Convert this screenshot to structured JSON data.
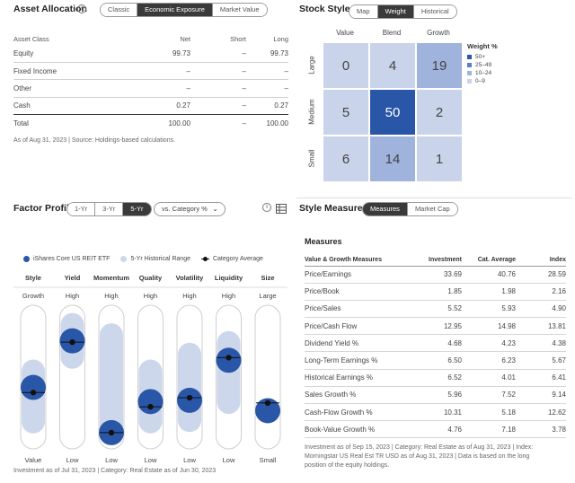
{
  "asset_allocation": {
    "title": "Asset Allocation",
    "tabs": [
      "Classic",
      "Economic Exposure",
      "Market Value"
    ],
    "active_tab": 1,
    "columns": [
      "Asset Class",
      "Net",
      "Short",
      "Long"
    ],
    "rows": [
      {
        "name": "Equity",
        "net": "99.73",
        "short": "–",
        "long": "99.73"
      },
      {
        "name": "Fixed Income",
        "net": "–",
        "short": "–",
        "long": "–"
      },
      {
        "name": "Other",
        "net": "–",
        "short": "–",
        "long": "–"
      },
      {
        "name": "Cash",
        "net": "0.27",
        "short": "–",
        "long": "0.27"
      },
      {
        "name": "Total",
        "net": "100.00",
        "short": "–",
        "long": "100.00"
      }
    ],
    "footnote": "As of Aug 31, 2023 | Source: Holdings-based calculations."
  },
  "stock_style": {
    "title": "Stock Style",
    "tabs": [
      "Map",
      "Weight",
      "Historical"
    ],
    "active_tab": 1,
    "col_labels": [
      "Value",
      "Blend",
      "Growth"
    ],
    "row_labels": [
      "Large",
      "Medium",
      "Small"
    ],
    "cells": [
      [
        0,
        4,
        19
      ],
      [
        5,
        50,
        2
      ],
      [
        6,
        14,
        1
      ]
    ],
    "legend_title": "Weight %",
    "legend": [
      {
        "label": "50+",
        "color": "#2a56a8"
      },
      {
        "label": "25–49",
        "color": "#5b7fc4"
      },
      {
        "label": "10–24",
        "color": "#9fb3dc"
      },
      {
        "label": "0–9",
        "color": "#c9d3ea"
      }
    ]
  },
  "factor_profile": {
    "title": "Factor Profile",
    "periods": [
      "1-Yr",
      "3-Yr",
      "5-Yr"
    ],
    "active_period": 2,
    "compare_select": "vs. Category %",
    "legend": {
      "fund": "iShares Core US REIT ETF",
      "range": "5-Yr Historical Range",
      "category": "Category Average"
    },
    "factors": [
      {
        "name": "Style",
        "top": "Growth",
        "bottom": "Value",
        "fund": 0.42,
        "category": 0.38,
        "range": [
          0.12,
          0.58
        ]
      },
      {
        "name": "Yield",
        "top": "High",
        "bottom": "Low",
        "fund": 0.78,
        "category": 0.77,
        "range": [
          0.62,
          0.94
        ]
      },
      {
        "name": "Momentum",
        "top": "High",
        "bottom": "Low",
        "fund": 0.07,
        "category": 0.07,
        "range": [
          0.03,
          0.86
        ]
      },
      {
        "name": "Quality",
        "top": "High",
        "bottom": "Low",
        "fund": 0.31,
        "category": 0.27,
        "range": [
          0.12,
          0.58
        ]
      },
      {
        "name": "Volatility",
        "top": "High",
        "bottom": "Low",
        "fund": 0.32,
        "category": 0.34,
        "range": [
          0.13,
          0.71
        ]
      },
      {
        "name": "Liquidity",
        "top": "High",
        "bottom": "Low",
        "fund": 0.63,
        "category": 0.65,
        "range": [
          0.27,
          0.8
        ]
      },
      {
        "name": "Size",
        "top": "Large",
        "bottom": "Small",
        "fund": 0.24,
        "category": 0.3,
        "range": [
          0.0,
          0.0
        ]
      }
    ],
    "footnote": "Investment as of Jul 31, 2023 | Category: Real Estate as of Jun 30, 2023"
  },
  "style_measures": {
    "title": "Style Measures",
    "tabs": [
      "Measures",
      "Market Cap"
    ],
    "active_tab": 0,
    "subtitle": "Measures",
    "columns": [
      "Value & Growth Measures",
      "Investment",
      "Cat. Average",
      "Index"
    ],
    "rows": [
      {
        "name": "Price/Earnings",
        "inv": "33.69",
        "cat": "40.76",
        "idx": "28.59"
      },
      {
        "name": "Price/Book",
        "inv": "1.85",
        "cat": "1.98",
        "idx": "2.16"
      },
      {
        "name": "Price/Sales",
        "inv": "5.52",
        "cat": "5.93",
        "idx": "4.90"
      },
      {
        "name": "Price/Cash Flow",
        "inv": "12.95",
        "cat": "14.98",
        "idx": "13.81"
      },
      {
        "name": "Dividend Yield %",
        "inv": "4.68",
        "cat": "4.23",
        "idx": "4.38"
      },
      {
        "name": "Long-Term Earnings %",
        "inv": "6.50",
        "cat": "6.23",
        "idx": "5.67"
      },
      {
        "name": "Historical Earnings %",
        "inv": "6.52",
        "cat": "4.01",
        "idx": "6.41"
      },
      {
        "name": "Sales Growth %",
        "inv": "5.96",
        "cat": "7.52",
        "idx": "9.14"
      },
      {
        "name": "Cash-Flow Growth %",
        "inv": "10.31",
        "cat": "5.18",
        "idx": "12.62"
      },
      {
        "name": "Book-Value Growth %",
        "inv": "4.76",
        "cat": "7.18",
        "idx": "3.78"
      }
    ],
    "footnote_1": "Investment as of Sep 15, 2023 | Category: Real Estate as of Aug 31, 2023 | Index:",
    "footnote_2": "Morningstar US Real Est TR USD as of Aug 31, 2023 | Data is based on the long",
    "footnote_3": "position of the equity holdings."
  },
  "colors": {
    "fund": "#2a56a8",
    "range": "#cdd7ec",
    "track": "#e9e9e9",
    "category": "#111111"
  }
}
